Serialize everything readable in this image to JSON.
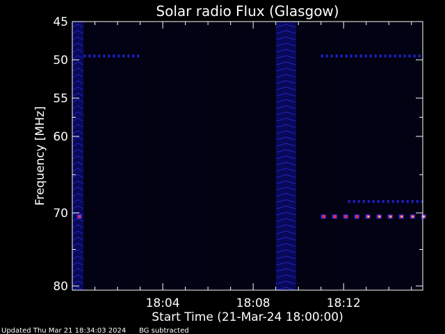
{
  "chart_data": {
    "type": "heatmap",
    "title": "Solar radio Flux (Glasgow)",
    "ylabel": "Frequency [MHz]",
    "xlabel": "Start Time (21-Mar-24 18:00:00)",
    "x_unit": "minutes after 18:00:00",
    "xlim": [
      0,
      15.5
    ],
    "ylim": [
      45,
      80
    ],
    "y_ticks": [
      {
        "value": 45,
        "label": "45"
      },
      {
        "value": 50,
        "label": "50"
      },
      {
        "value": 55,
        "label": "55"
      },
      {
        "value": 60,
        "label": "60"
      },
      {
        "value": 70,
        "label": "70"
      },
      {
        "value": 80,
        "label": "80"
      }
    ],
    "y_tick_positions": [
      45,
      50,
      55,
      60,
      70,
      80
    ],
    "x_ticks": [
      {
        "value": 4,
        "label": "18:04"
      },
      {
        "value": 8,
        "label": "18:08"
      },
      {
        "value": 12,
        "label": "18:12"
      }
    ],
    "background_color": "#000000",
    "colormap": [
      "#000010",
      "#0a0a80",
      "#2c1cff",
      "#ff2020",
      "#ffff80"
    ],
    "broadband_bursts": [
      {
        "t_start": 0,
        "t_end": 0.5
      },
      {
        "t_start": 9.0,
        "t_end": 9.9
      }
    ],
    "narrowband_emission": [
      {
        "freq": 49.5,
        "t_start": 0.5,
        "t_end": 3.0,
        "level": "low"
      },
      {
        "freq": 49.5,
        "t_start": 11.0,
        "t_end": 15.5,
        "level": "low"
      },
      {
        "freq": 68.5,
        "t_start": 12.2,
        "t_end": 15.5,
        "level": "low"
      },
      {
        "freq": 70.5,
        "t_start": 0.2,
        "t_end": 0.4,
        "level": "high"
      },
      {
        "freq": 70.5,
        "t_start": 11.0,
        "t_end": 15.5,
        "level": "high"
      }
    ]
  },
  "footer": {
    "updated": "Updated Thu Mar 21 18:34:03 2024",
    "note": "BG subtracted"
  }
}
